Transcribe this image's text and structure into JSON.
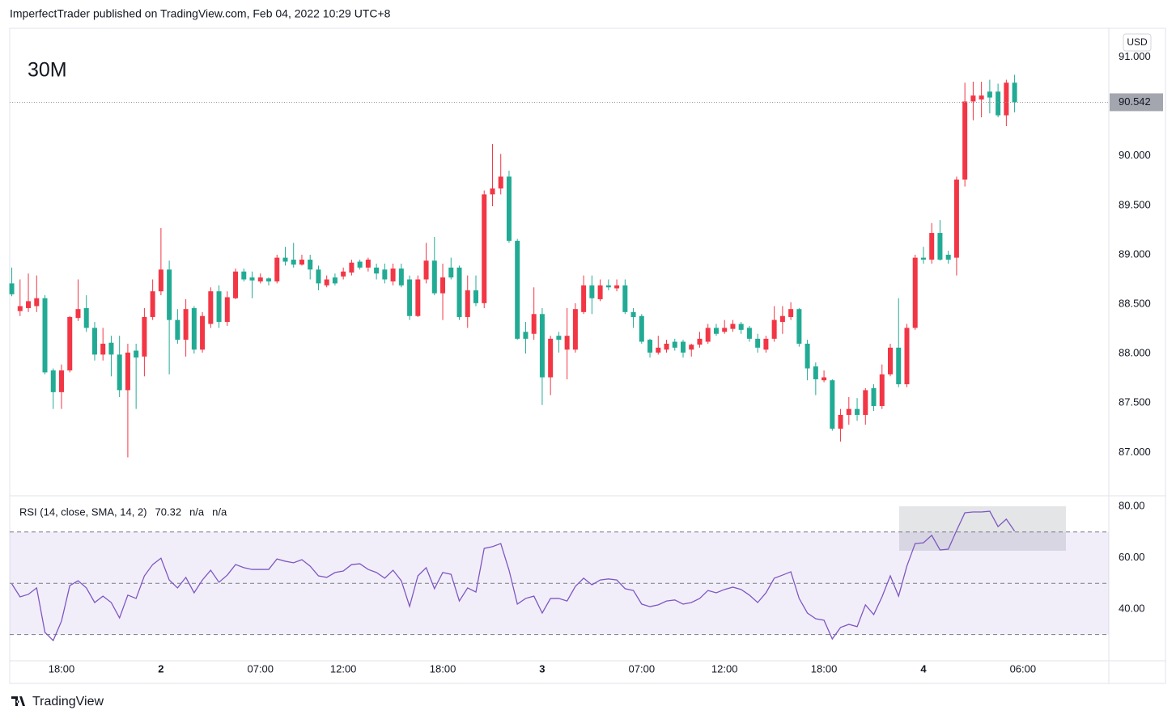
{
  "header": "ImperfectTrader published on TradingView.com, Feb 04, 2022 10:29 UTC+8",
  "footer_brand": "TradingView",
  "chart_data": [
    {
      "type": "candlestick",
      "title": "30M",
      "currency": "USD",
      "up_color": "#f23645",
      "down_color": "#22ab94",
      "grid": false,
      "ylim": [
        86.57,
        91.29
      ],
      "yticks": [
        {
          "value": 87,
          "label": "87.000"
        },
        {
          "value": 87.5,
          "label": "87.500"
        },
        {
          "value": 88,
          "label": "88.000"
        },
        {
          "value": 88.5,
          "label": "88.500"
        },
        {
          "value": 89,
          "label": "89.000"
        },
        {
          "value": 89.5,
          "label": "89.500"
        },
        {
          "value": 90,
          "label": "90.000"
        },
        {
          "value": 91,
          "label": "91.000"
        }
      ],
      "categories": [
        null,
        null,
        null,
        null,
        null,
        null,
        "18:00",
        null,
        null,
        null,
        null,
        null,
        null,
        null,
        null,
        null,
        null,
        null,
        "2",
        null,
        null,
        null,
        null,
        null,
        null,
        null,
        null,
        null,
        null,
        null,
        "07:00",
        null,
        null,
        null,
        null,
        null,
        null,
        null,
        null,
        null,
        "12:00",
        null,
        null,
        null,
        null,
        null,
        null,
        null,
        null,
        null,
        null,
        null,
        "18:00",
        null,
        null,
        null,
        null,
        null,
        null,
        null,
        null,
        null,
        null,
        null,
        "3",
        null,
        null,
        null,
        null,
        null,
        null,
        null,
        null,
        null,
        null,
        null,
        "07:00",
        null,
        null,
        null,
        null,
        null,
        null,
        null,
        null,
        null,
        "12:00",
        null,
        null,
        null,
        null,
        null,
        null,
        null,
        null,
        null,
        null,
        null,
        "18:00",
        null,
        null,
        null,
        null,
        null,
        null,
        null,
        null,
        null,
        null,
        null,
        "4",
        null,
        null,
        null,
        null,
        null,
        null,
        null,
        null,
        null,
        null,
        null,
        "06:00"
      ],
      "open": [
        88.71,
        88.43,
        88.46,
        88.48,
        88.56,
        87.83,
        87.61,
        87.83,
        88.36,
        88.46,
        88.26,
        87.99,
        88.11,
        87.99,
        87.63,
        88.03,
        87.97,
        88.37,
        88.63,
        88.85,
        88.34,
        88.14,
        88.46,
        88.04,
        88.3,
        88.63,
        88.32,
        88.56,
        88.83,
        88.77,
        88.73,
        88.76,
        88.73,
        88.97,
        88.95,
        88.9,
        88.95,
        88.85,
        88.69,
        88.77,
        88.78,
        88.82,
        88.93,
        88.87,
        88.87,
        88.85,
        88.73,
        88.86,
        88.75,
        88.38,
        88.75,
        88.94,
        88.61,
        88.87,
        88.87,
        88.37,
        88.64,
        88.51,
        89.61,
        89.67,
        89.79,
        89.14,
        88.22,
        88.2,
        88.4,
        87.76,
        88.18,
        88.04,
        88.04,
        88.42,
        88.69,
        88.55,
        88.69,
        88.66,
        88.69,
        88.42,
        88.38,
        88.14,
        88.01,
        88.04,
        88.12,
        88.12,
        88.04,
        88.09,
        88.12,
        88.26,
        88.22,
        88.25,
        88.3,
        88.26,
        88.15,
        88.04,
        88.15,
        88.32,
        88.37,
        88.45,
        88.1,
        87.87,
        87.73,
        87.73,
        87.24,
        87.38,
        87.44,
        87.38,
        87.65,
        87.47,
        87.79,
        88.06,
        87.69,
        88.26,
        88.97,
        88.95,
        89.22,
        89.0,
        88.97,
        89.76,
        90.55,
        90.57,
        90.65,
        90.65,
        90.41,
        90.74,
        null
      ],
      "high": [
        88.87,
        88.75,
        88.81,
        88.79,
        88.59,
        87.85,
        87.89,
        88.38,
        88.75,
        88.59,
        88.32,
        88.26,
        88.18,
        88.18,
        88.1,
        88.1,
        88.46,
        88.75,
        89.27,
        88.94,
        88.45,
        88.55,
        88.48,
        88.42,
        88.67,
        88.69,
        88.63,
        88.86,
        88.86,
        88.83,
        88.81,
        88.77,
        89.0,
        89.08,
        89.12,
        89.0,
        89.0,
        88.89,
        88.79,
        88.81,
        88.87,
        88.95,
        88.95,
        88.97,
        88.91,
        88.91,
        88.91,
        88.91,
        88.79,
        88.79,
        89.12,
        89.18,
        88.91,
        88.97,
        88.89,
        88.79,
        88.79,
        89.65,
        90.12,
        90.02,
        89.85,
        89.16,
        88.32,
        88.67,
        88.46,
        88.18,
        88.22,
        88.46,
        88.51,
        88.79,
        88.79,
        88.75,
        88.75,
        88.75,
        88.75,
        88.46,
        88.4,
        88.15,
        88.18,
        88.14,
        88.15,
        88.14,
        88.1,
        88.22,
        88.3,
        88.3,
        88.34,
        88.34,
        88.32,
        88.28,
        88.2,
        88.18,
        88.48,
        88.48,
        88.52,
        88.46,
        88.14,
        87.91,
        87.83,
        87.74,
        87.44,
        87.56,
        87.55,
        87.65,
        87.69,
        87.89,
        88.1,
        88.56,
        88.3,
        89.0,
        89.08,
        89.32,
        89.35,
        89.04,
        89.79,
        90.74,
        90.75,
        90.75,
        90.77,
        90.73,
        90.77,
        90.82,
        null
      ],
      "low": [
        88.58,
        88.38,
        88.42,
        88.42,
        87.79,
        87.44,
        87.44,
        87.81,
        88.33,
        88.22,
        87.93,
        87.93,
        87.77,
        87.56,
        86.95,
        87.44,
        87.77,
        88.34,
        88.59,
        87.79,
        88.1,
        87.97,
        88.0,
        88.01,
        88.26,
        88.26,
        88.28,
        88.55,
        88.73,
        88.56,
        88.71,
        88.69,
        88.71,
        88.89,
        88.87,
        88.89,
        88.75,
        88.64,
        88.67,
        88.69,
        88.75,
        88.79,
        88.85,
        88.83,
        88.75,
        88.71,
        88.69,
        88.67,
        88.34,
        88.37,
        88.71,
        88.59,
        88.34,
        88.75,
        88.34,
        88.26,
        88.48,
        88.46,
        89.49,
        89.61,
        89.12,
        88.14,
        88.0,
        88.14,
        87.48,
        87.58,
        88.01,
        87.74,
        88.01,
        88.4,
        88.4,
        88.53,
        88.64,
        88.63,
        88.4,
        88.26,
        88.1,
        87.96,
        87.99,
        88.01,
        88.03,
        87.96,
        87.97,
        88.06,
        88.1,
        88.18,
        88.2,
        88.22,
        88.2,
        88.12,
        88.01,
        88.01,
        88.12,
        88.2,
        88.34,
        88.07,
        87.73,
        87.58,
        87.71,
        87.22,
        87.11,
        87.28,
        87.32,
        87.28,
        87.42,
        87.44,
        87.77,
        87.66,
        87.66,
        88.24,
        88.91,
        88.91,
        88.94,
        88.91,
        88.79,
        89.69,
        90.36,
        90.39,
        90.43,
        90.39,
        90.3,
        90.44,
        null
      ],
      "close": [
        88.6,
        88.48,
        88.53,
        88.56,
        87.81,
        87.61,
        87.83,
        88.37,
        88.45,
        88.26,
        87.99,
        88.1,
        87.99,
        87.63,
        88.01,
        87.96,
        88.37,
        88.63,
        88.85,
        88.34,
        88.14,
        88.45,
        88.04,
        88.38,
        88.63,
        88.32,
        88.57,
        88.83,
        88.75,
        88.74,
        88.77,
        88.73,
        88.97,
        88.93,
        88.9,
        88.95,
        88.85,
        88.71,
        88.75,
        88.71,
        88.83,
        88.92,
        88.87,
        88.95,
        88.81,
        88.75,
        88.86,
        88.69,
        88.38,
        88.75,
        88.94,
        88.61,
        88.77,
        88.77,
        88.37,
        88.64,
        88.51,
        89.61,
        89.67,
        89.79,
        89.14,
        88.15,
        88.15,
        88.4,
        87.76,
        88.15,
        88.14,
        88.18,
        88.45,
        88.69,
        88.56,
        88.69,
        88.67,
        88.69,
        88.42,
        88.37,
        88.12,
        88.01,
        88.06,
        88.1,
        88.06,
        88.01,
        88.09,
        88.15,
        88.26,
        88.2,
        88.26,
        88.3,
        88.24,
        88.15,
        88.06,
        88.15,
        88.34,
        88.38,
        88.45,
        88.1,
        87.85,
        87.74,
        87.76,
        87.24,
        87.38,
        87.44,
        87.38,
        87.63,
        87.47,
        87.79,
        88.06,
        87.69,
        88.26,
        88.97,
        88.95,
        89.22,
        88.95,
        88.95,
        89.76,
        90.55,
        90.61,
        90.61,
        90.59,
        90.41,
        90.74,
        90.542,
        null
      ]
    },
    {
      "type": "line",
      "title": "RSI (14, close, SMA, 14, 2)",
      "color": "#7e57c2",
      "legend_values": [
        "n/a",
        "n/a"
      ],
      "ylim": [
        19.8,
        83.8
      ],
      "yticks": [
        {
          "value": 40,
          "label": "40.00"
        },
        {
          "value": 60,
          "label": "60.00"
        },
        {
          "value": 80,
          "label": "80.00"
        }
      ],
      "levels": [
        70,
        50,
        30
      ],
      "values": [
        49.8,
        44.7,
        45.7,
        48.2,
        30.9,
        27.7,
        35.3,
        49.1,
        51.0,
        48.2,
        42.5,
        45.0,
        42.5,
        36.5,
        45.4,
        44.1,
        52.9,
        57.3,
        59.8,
        51.3,
        48.2,
        52.3,
        46.3,
        51.3,
        55.1,
        50.4,
        53.2,
        57.3,
        56.1,
        55.4,
        55.4,
        55.4,
        59.5,
        58.6,
        58.0,
        59.2,
        56.7,
        52.9,
        52.3,
        54.2,
        54.8,
        57.3,
        57.6,
        55.4,
        54.2,
        52.0,
        55.1,
        51.0,
        41.0,
        52.9,
        56.1,
        47.9,
        54.2,
        53.5,
        43.1,
        48.2,
        46.6,
        63.6,
        64.3,
        65.5,
        55.1,
        41.9,
        44.1,
        45.0,
        38.4,
        44.1,
        44.1,
        43.1,
        48.8,
        52.0,
        49.4,
        51.3,
        51.7,
        51.3,
        47.9,
        47.2,
        41.9,
        40.9,
        41.6,
        43.1,
        43.5,
        41.9,
        42.5,
        44.1,
        47.2,
        46.3,
        47.6,
        48.5,
        47.6,
        45.4,
        42.5,
        46.3,
        52.0,
        53.2,
        54.5,
        44.1,
        38.4,
        36.2,
        35.6,
        28.3,
        32.8,
        34.0,
        33.1,
        41.6,
        37.8,
        44.7,
        52.9,
        45.0,
        56.7,
        65.5,
        65.8,
        68.7,
        63.0,
        63.3,
        70.6,
        77.5,
        77.8,
        77.8,
        78.1,
        72.1,
        75.0,
        70.32,
        null
      ]
    }
  ]
}
